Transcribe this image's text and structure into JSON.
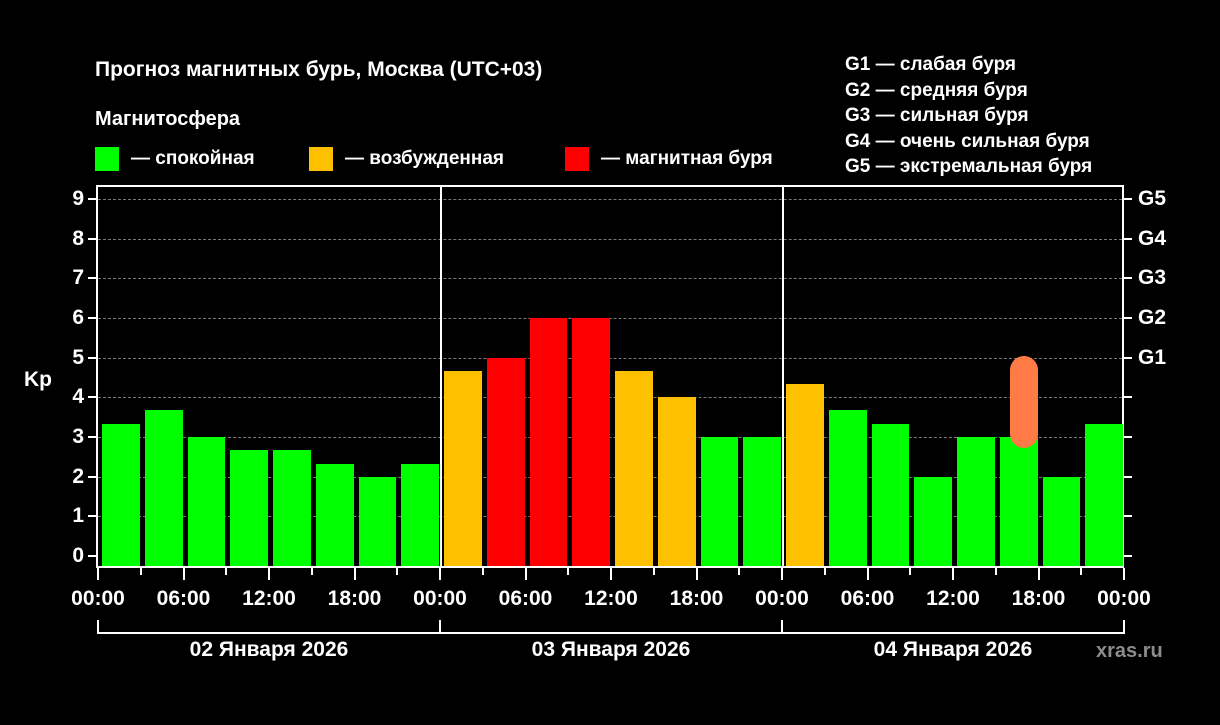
{
  "header": {
    "title": "Прогноз магнитных бурь, Москва (UTC+03)",
    "subtitle": "Магнитосфера"
  },
  "legend": [
    {
      "label": "— спокойная",
      "color": "#00ff00"
    },
    {
      "label": "— возбужденная",
      "color": "#ffc000"
    },
    {
      "label": "— магнитная буря",
      "color": "#ff0000"
    }
  ],
  "g_legend": [
    "G1 — слабая буря",
    "G2 — средняя буря",
    "G3 — сильная буря",
    "G4 — очень сильная буря",
    "G5 — экстремальная буря"
  ],
  "axis": {
    "ylabel": "Kp",
    "yticks": [
      "0",
      "1",
      "2",
      "3",
      "4",
      "5",
      "6",
      "7",
      "8",
      "9"
    ],
    "right_ticks": [
      {
        "label": "G1",
        "kp": 5
      },
      {
        "label": "G2",
        "kp": 6
      },
      {
        "label": "G3",
        "kp": 7
      },
      {
        "label": "G4",
        "kp": 8
      },
      {
        "label": "G5",
        "kp": 9
      }
    ],
    "xticks": [
      "00:00",
      "06:00",
      "12:00",
      "18:00",
      "00:00",
      "06:00",
      "12:00",
      "18:00",
      "00:00",
      "06:00",
      "12:00",
      "18:00",
      "00:00"
    ],
    "days": [
      "02 Января 2026",
      "03 Января 2026",
      "04 Января 2026"
    ]
  },
  "watermark": "xras.ru",
  "chart_data": {
    "type": "bar",
    "title": "Прогноз магнитных бурь, Москва (UTC+03)",
    "xlabel": "",
    "ylabel": "Kp",
    "ylim": [
      0,
      9
    ],
    "grid": true,
    "categories": [
      "02.01 00:00",
      "02.01 03:00",
      "02.01 06:00",
      "02.01 09:00",
      "02.01 12:00",
      "02.01 15:00",
      "02.01 18:00",
      "02.01 21:00",
      "03.01 00:00",
      "03.01 03:00",
      "03.01 06:00",
      "03.01 09:00",
      "03.01 12:00",
      "03.01 15:00",
      "03.01 18:00",
      "03.01 21:00",
      "04.01 00:00",
      "04.01 03:00",
      "04.01 06:00",
      "04.01 09:00",
      "04.01 12:00",
      "04.01 15:00",
      "04.01 18:00",
      "04.01 21:00"
    ],
    "values": [
      3.33,
      3.67,
      3,
      2.67,
      2.67,
      2.33,
      2,
      2.33,
      4.67,
      5,
      6,
      6,
      4.67,
      4,
      3,
      3,
      4.33,
      3.67,
      3.33,
      2,
      3,
      3,
      2,
      3.33
    ],
    "colors": [
      "#00ff00",
      "#00ff00",
      "#00ff00",
      "#00ff00",
      "#00ff00",
      "#00ff00",
      "#00ff00",
      "#00ff00",
      "#ffc000",
      "#ff0000",
      "#ff0000",
      "#ff0000",
      "#ffc000",
      "#ffc000",
      "#00ff00",
      "#00ff00",
      "#ffc000",
      "#00ff00",
      "#00ff00",
      "#00ff00",
      "#00ff00",
      "#00ff00",
      "#00ff00",
      "#00ff00"
    ],
    "legend": [
      "спокойная",
      "возбужденная",
      "магнитная буря"
    ],
    "right_axis": {
      "G1": 5,
      "G2": 6,
      "G3": 7,
      "G4": 8,
      "G5": 9
    },
    "annotation": "hand-drawn orange mark over 04.01 15:00 bar"
  }
}
